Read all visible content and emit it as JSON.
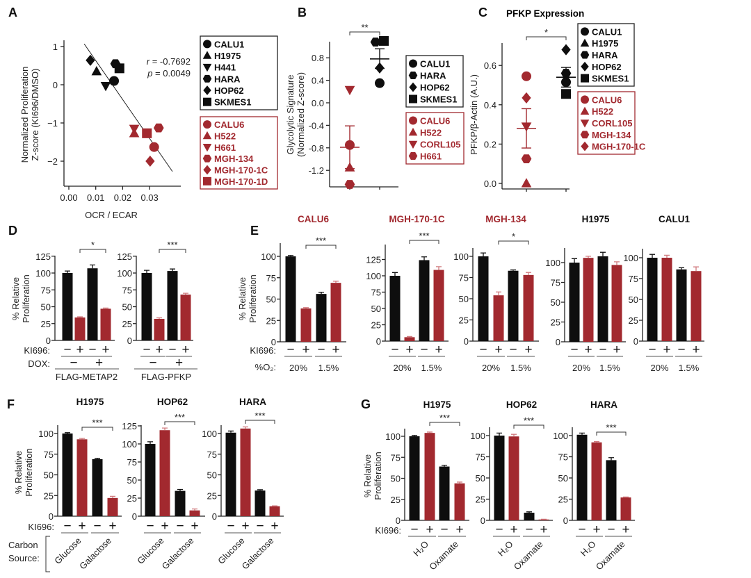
{
  "colors": {
    "black": "#0e0e0e",
    "red": "#a2292f",
    "red_error": "#d07a7e",
    "red_text": "#a2292f"
  },
  "panel_letters": [
    "A",
    "B",
    "C",
    "D",
    "E",
    "F",
    "G"
  ],
  "row_labels": {
    "ki696": "KI696:",
    "dox": "DOX:",
    "o2": "%O₂:",
    "carbon_source": [
      "Carbon",
      "Source:"
    ]
  },
  "chart_data": [
    {
      "panel": "A",
      "type": "scatter",
      "xlabel": "OCR / ECAR",
      "ylabel": [
        "Normalized Proliferation",
        "Z-score (KI696/DMSO)"
      ],
      "xlim": [
        0,
        0.04
      ],
      "ylim": [
        -2.7,
        1.2
      ],
      "xticks": [
        0,
        0.01,
        0.02,
        0.03
      ],
      "xtick_labels": [
        "0.00",
        "0.01",
        "0.02",
        "0.03"
      ],
      "yticks": [
        1,
        0,
        -1,
        -2
      ],
      "ytick_labels": [
        "1",
        "0",
        "−1",
        "−2"
      ],
      "stats": {
        "r_label": "r",
        "r_value": " = -0.7692",
        "p_label": "p",
        "p_value": " = 0.0049"
      },
      "fit_line": {
        "x": [
          0.0057,
          0.0385
        ],
        "y": [
          1.07,
          -2.27
        ]
      },
      "points": [
        {
          "name": "CALU1",
          "shape": "circle",
          "color": "black",
          "x": 0.0168,
          "y": 0.1
        },
        {
          "name": "H1975",
          "shape": "triangle",
          "color": "black",
          "x": 0.0103,
          "y": 0.35
        },
        {
          "name": "H441",
          "shape": "down-triangle",
          "color": "black",
          "x": 0.0137,
          "y": -0.03
        },
        {
          "name": "HARA",
          "shape": "hexagon",
          "color": "black",
          "x": 0.0173,
          "y": 0.55
        },
        {
          "name": "HOP62",
          "shape": "diamond",
          "color": "black",
          "x": 0.008,
          "y": 0.64
        },
        {
          "name": "SKMES1",
          "shape": "square",
          "color": "black",
          "x": 0.0188,
          "y": 0.43
        },
        {
          "name": "CALU6",
          "shape": "circle",
          "color": "red",
          "x": 0.0317,
          "y": -1.63
        },
        {
          "name": "H522",
          "shape": "triangle",
          "color": "red",
          "x": 0.0243,
          "y": -1.27
        },
        {
          "name": "H661",
          "shape": "down-triangle",
          "color": "red",
          "x": 0.0243,
          "y": -1.15
        },
        {
          "name": "MGH-134",
          "shape": "hexagon",
          "color": "red",
          "x": 0.0334,
          "y": -1.13
        },
        {
          "name": "MGH-170-1C",
          "shape": "diamond",
          "color": "red",
          "x": 0.0302,
          "y": -2.0
        },
        {
          "name": "MGH-170-1D",
          "shape": "square",
          "color": "red",
          "x": 0.029,
          "y": -1.27
        }
      ],
      "legends": [
        {
          "color": "black",
          "items": [
            {
              "shape": "circle",
              "label": "CALU1"
            },
            {
              "shape": "triangle",
              "label": "H1975"
            },
            {
              "shape": "down-triangle",
              "label": "H441"
            },
            {
              "shape": "hexagon",
              "label": "HARA"
            },
            {
              "shape": "diamond",
              "label": "HOP62"
            },
            {
              "shape": "square",
              "label": "SKMES1"
            }
          ]
        },
        {
          "color": "red",
          "items": [
            {
              "shape": "circle",
              "label": "CALU6"
            },
            {
              "shape": "triangle",
              "label": "H522"
            },
            {
              "shape": "down-triangle",
              "label": "H661"
            },
            {
              "shape": "hexagon",
              "label": "MGH-134"
            },
            {
              "shape": "diamond",
              "label": "MGH-170-1C"
            },
            {
              "shape": "square",
              "label": "MGH-170-1D"
            }
          ]
        }
      ]
    },
    {
      "panel": "B",
      "type": "scatter",
      "ylabel": [
        "Glycolytic Signature",
        "(Normalized Z-score)"
      ],
      "ylim": [
        -1.5,
        1.2
      ],
      "yticks": [
        0.8,
        0.4,
        0.0,
        -0.4,
        -0.8,
        -1.2
      ],
      "ytick_labels": [
        "0.8",
        "0.4",
        "0.0",
        "-0.4",
        "-0.8",
        "-1.2"
      ],
      "significance": "**",
      "groups": [
        {
          "color": "red",
          "mean": -0.79,
          "error_range": [
            -1.17,
            -0.41
          ],
          "points": [
            {
              "name": "CALU6",
              "shape": "circle",
              "y": -0.75
            },
            {
              "name": "H522",
              "shape": "triangle",
              "y": -1.15
            },
            {
              "name": "CORL105",
              "shape": "down-triangle",
              "y": 0.23
            },
            {
              "name": "H661",
              "shape": "hexagon",
              "y": -1.45
            }
          ]
        },
        {
          "color": "black",
          "mean": 0.78,
          "error_range": [
            0.61,
            0.96
          ],
          "points": [
            {
              "name": "CALU1",
              "shape": "circle",
              "y": 0.35
            },
            {
              "name": "HARA",
              "shape": "hexagon",
              "y": 1.08
            },
            {
              "name": "HOP62",
              "shape": "diamond",
              "y": 0.62
            },
            {
              "name": "SKMES1",
              "shape": "square",
              "y": 1.1
            }
          ]
        }
      ],
      "legends": [
        {
          "color": "black",
          "items": [
            {
              "shape": "circle",
              "label": "CALU1"
            },
            {
              "shape": "hexagon",
              "label": "HARA"
            },
            {
              "shape": "diamond",
              "label": "HOP62"
            },
            {
              "shape": "square",
              "label": "SKMES1"
            }
          ]
        },
        {
          "color": "red",
          "items": [
            {
              "shape": "circle",
              "label": "CALU6"
            },
            {
              "shape": "triangle",
              "label": "H522"
            },
            {
              "shape": "down-triangle",
              "label": "CORL105"
            },
            {
              "shape": "hexagon",
              "label": "H661"
            }
          ]
        }
      ]
    },
    {
      "panel": "C",
      "type": "scatter",
      "title": "PFKP Expression",
      "ylabel": [
        "PFKP/β-Actin (A.U.)"
      ],
      "ylim": [
        0,
        0.72
      ],
      "yticks": [
        0.6,
        0.4,
        0.2,
        0.0
      ],
      "ytick_labels": [
        "0.6",
        "0.4",
        "0.2",
        "0.0"
      ],
      "significance": "*",
      "groups": [
        {
          "color": "red",
          "mean": 0.28,
          "error_range": [
            0.18,
            0.38
          ],
          "points": [
            {
              "name": "CALU6",
              "shape": "circle",
              "y": 0.545
            },
            {
              "name": "H522",
              "shape": "triangle",
              "y": 0.0
            },
            {
              "name": "CORL105",
              "shape": "down-triangle",
              "y": 0.29
            },
            {
              "name": "MGH-134",
              "shape": "hexagon",
              "y": 0.125
            },
            {
              "name": "MGH-170-1C",
              "shape": "diamond",
              "y": 0.435
            }
          ]
        },
        {
          "color": "black",
          "mean": 0.54,
          "error_range": [
            0.49,
            0.59
          ],
          "points": [
            {
              "name": "CALU1",
              "shape": "circle",
              "y": 0.515
            },
            {
              "name": "H1975",
              "shape": "triangle",
              "y": 0.535
            },
            {
              "name": "HARA",
              "shape": "hexagon",
              "y": 0.56
            },
            {
              "name": "HOP62",
              "shape": "diamond",
              "y": 0.68
            },
            {
              "name": "SKMES1",
              "shape": "square",
              "y": 0.455
            }
          ]
        }
      ],
      "legends": [
        {
          "color": "black",
          "items": [
            {
              "shape": "circle",
              "label": "CALU1"
            },
            {
              "shape": "triangle",
              "label": "H1975"
            },
            {
              "shape": "hexagon",
              "label": "HARA"
            },
            {
              "shape": "diamond",
              "label": "HOP62"
            },
            {
              "shape": "square",
              "label": "SKMES1"
            }
          ]
        },
        {
          "color": "red",
          "items": [
            {
              "shape": "circle",
              "label": "CALU6"
            },
            {
              "shape": "triangle",
              "label": "H522"
            },
            {
              "shape": "down-triangle",
              "label": "CORL105"
            },
            {
              "shape": "hexagon",
              "label": "MGH-134"
            },
            {
              "shape": "diamond",
              "label": "MGH-170-1C"
            }
          ]
        }
      ]
    },
    {
      "panel": "D",
      "type": "bar",
      "title": "",
      "ylabel": [
        "% Relative",
        "Proliferation"
      ],
      "yticks": [
        0,
        25,
        50,
        75,
        100,
        125
      ],
      "ki696": [
        "−",
        "+",
        "−",
        "+"
      ],
      "dox": [
        "−",
        "+"
      ],
      "caption": "FLAG-METAP2",
      "values": [
        100,
        34,
        107,
        47
      ],
      "errors": [
        3,
        1,
        5,
        1
      ],
      "bar_colors": [
        "black",
        "red",
        "black",
        "red"
      ],
      "significance": {
        "label": "*",
        "between": [
          1,
          3
        ]
      }
    },
    {
      "panel": "D",
      "type": "bar",
      "title": "",
      "yticks": [
        0,
        25,
        50,
        75,
        100,
        125
      ],
      "ki696": [
        "−",
        "+",
        "−",
        "+"
      ],
      "dox": [
        "−",
        "+"
      ],
      "caption": "FLAG-PFKP",
      "values": [
        100,
        32,
        103,
        68
      ],
      "errors": [
        4,
        1.5,
        3,
        2
      ],
      "bar_colors": [
        "black",
        "red",
        "black",
        "red"
      ],
      "significance": {
        "label": "***",
        "between": [
          1,
          3
        ]
      }
    },
    {
      "panel": "E",
      "type": "bar",
      "title": "CALU6",
      "title_color": "red",
      "ylabel": [
        "% Relative",
        "Proliferation"
      ],
      "yticks": [
        0,
        25,
        50,
        75,
        100
      ],
      "ki696": [
        "−",
        "+",
        "−",
        "+"
      ],
      "group_labels": [
        "20%",
        "1.5%"
      ],
      "values": [
        100,
        39,
        56,
        69
      ],
      "errors": [
        1,
        1,
        2,
        2
      ],
      "bar_colors": [
        "black",
        "red",
        "black",
        "red"
      ],
      "significance": {
        "label": "***",
        "between": [
          1,
          3
        ]
      }
    },
    {
      "panel": "E",
      "type": "bar",
      "title": "MGH-170-1C",
      "title_color": "red",
      "yticks": [
        0,
        25,
        50,
        75,
        100,
        125
      ],
      "ki696": [
        "−",
        "+",
        "−",
        "+"
      ],
      "group_labels": [
        "20%",
        "1.5%"
      ],
      "values": [
        100,
        6,
        124,
        109
      ],
      "errors": [
        5,
        1,
        5,
        5
      ],
      "bar_colors": [
        "black",
        "red",
        "black",
        "red"
      ],
      "significance": {
        "label": "***",
        "between": [
          1,
          3
        ]
      }
    },
    {
      "panel": "E",
      "type": "bar",
      "title": "MGH-134",
      "title_color": "red",
      "yticks": [
        0,
        25,
        50,
        75,
        100
      ],
      "ki696": [
        "−",
        "+",
        "−",
        "+"
      ],
      "group_labels": [
        "20%",
        "1.5%"
      ],
      "values": [
        100,
        54,
        83,
        78
      ],
      "errors": [
        4,
        4,
        1,
        3
      ],
      "bar_colors": [
        "black",
        "red",
        "black",
        "red"
      ],
      "significance": {
        "label": "*",
        "between": [
          1,
          3
        ]
      }
    },
    {
      "panel": "E",
      "type": "bar",
      "title": "H1975",
      "title_color": "black",
      "yticks": [
        0,
        25,
        50,
        75,
        100
      ],
      "ki696": [
        "−",
        "+",
        "−",
        "+"
      ],
      "group_labels": [
        "20%",
        "1.5%"
      ],
      "values": [
        100,
        106,
        108,
        97
      ],
      "errors": [
        5,
        2,
        5,
        4
      ],
      "bar_colors": [
        "black",
        "red",
        "black",
        "red"
      ]
    },
    {
      "panel": "E",
      "type": "bar",
      "title": "CALU1",
      "title_color": "black",
      "yticks": [
        0,
        25,
        50,
        75,
        100
      ],
      "ki696": [
        "−",
        "+",
        "−",
        "+"
      ],
      "group_labels": [
        "20%",
        "1.5%"
      ],
      "values": [
        100,
        100,
        86,
        84
      ],
      "errors": [
        4,
        3,
        2,
        5
      ],
      "bar_colors": [
        "black",
        "red",
        "black",
        "red"
      ]
    },
    {
      "panel": "F",
      "type": "bar",
      "title": "H1975",
      "title_color": "black",
      "ylabel": [
        "% Relative",
        "Proliferation"
      ],
      "yticks": [
        0,
        25,
        50,
        75,
        100
      ],
      "ki696": [
        "−",
        "+",
        "−",
        "+"
      ],
      "rotated_labels": [
        "Glucose",
        "Galactose"
      ],
      "values": [
        100,
        93,
        69,
        22
      ],
      "errors": [
        1,
        1,
        1,
        2
      ],
      "bar_colors": [
        "black",
        "red",
        "black",
        "red"
      ],
      "significance": {
        "label": "***",
        "between": [
          1,
          3
        ]
      }
    },
    {
      "panel": "F",
      "type": "bar",
      "title": "HOP62",
      "title_color": "black",
      "yticks": [
        0,
        25,
        50,
        75,
        100,
        125
      ],
      "ki696": [
        "−",
        "+",
        "−",
        "+"
      ],
      "rotated_labels": [
        "Glucose",
        "Galactose"
      ],
      "values": [
        100,
        119,
        35,
        8
      ],
      "errors": [
        3,
        3,
        2,
        2
      ],
      "bar_colors": [
        "black",
        "red",
        "black",
        "red"
      ],
      "significance": {
        "label": "***",
        "between": [
          1,
          3
        ]
      }
    },
    {
      "panel": "F",
      "type": "bar",
      "title": "HARA",
      "title_color": "black",
      "yticks": [
        0,
        25,
        50,
        75,
        100
      ],
      "ki696": [
        "−",
        "+",
        "−",
        "+"
      ],
      "rotated_labels": [
        "Glucose",
        "Galactose"
      ],
      "values": [
        101,
        106,
        31,
        12
      ],
      "errors": [
        2,
        2,
        1,
        0.5
      ],
      "bar_colors": [
        "black",
        "red",
        "black",
        "red"
      ],
      "significance": {
        "label": "***",
        "between": [
          1,
          3
        ]
      }
    },
    {
      "panel": "G",
      "type": "bar",
      "title": "H1975",
      "title_color": "black",
      "ylabel": [
        "% Relative",
        "Proliferation"
      ],
      "yticks": [
        0,
        25,
        50,
        75,
        100
      ],
      "ki696": [
        "−",
        "+",
        "−",
        "+"
      ],
      "rotated_labels": [
        "H₂O",
        "Oxamate"
      ],
      "values": [
        100,
        104,
        64,
        44
      ],
      "errors": [
        1,
        1,
        1.5,
        1.5
      ],
      "bar_colors": [
        "black",
        "red",
        "black",
        "red"
      ],
      "significance": {
        "label": "***",
        "between": [
          1,
          3
        ]
      }
    },
    {
      "panel": "G",
      "type": "bar",
      "title": "HOP62",
      "title_color": "black",
      "yticks": [
        0,
        25,
        50,
        75,
        100
      ],
      "ki696": [
        "−",
        "+",
        "−",
        "+"
      ],
      "rotated_labels": [
        "H₂O",
        "Oxamate"
      ],
      "values": [
        100,
        99,
        9,
        1
      ],
      "errors": [
        3,
        2.5,
        1,
        0.3
      ],
      "bar_colors": [
        "black",
        "red",
        "black",
        "red"
      ],
      "significance": {
        "label": "***",
        "between": [
          1,
          3
        ]
      }
    },
    {
      "panel": "G",
      "type": "bar",
      "title": "HARA",
      "title_color": "black",
      "yticks": [
        0,
        25,
        50,
        75,
        100
      ],
      "ki696": [
        "−",
        "+",
        "−",
        "+"
      ],
      "rotated_labels": [
        "H₂O",
        "Oxamate"
      ],
      "values": [
        101,
        92,
        71,
        27
      ],
      "errors": [
        2,
        1,
        3,
        0.5
      ],
      "bar_colors": [
        "black",
        "red",
        "black",
        "red"
      ],
      "significance": {
        "label": "***",
        "between": [
          1,
          3
        ]
      }
    }
  ]
}
